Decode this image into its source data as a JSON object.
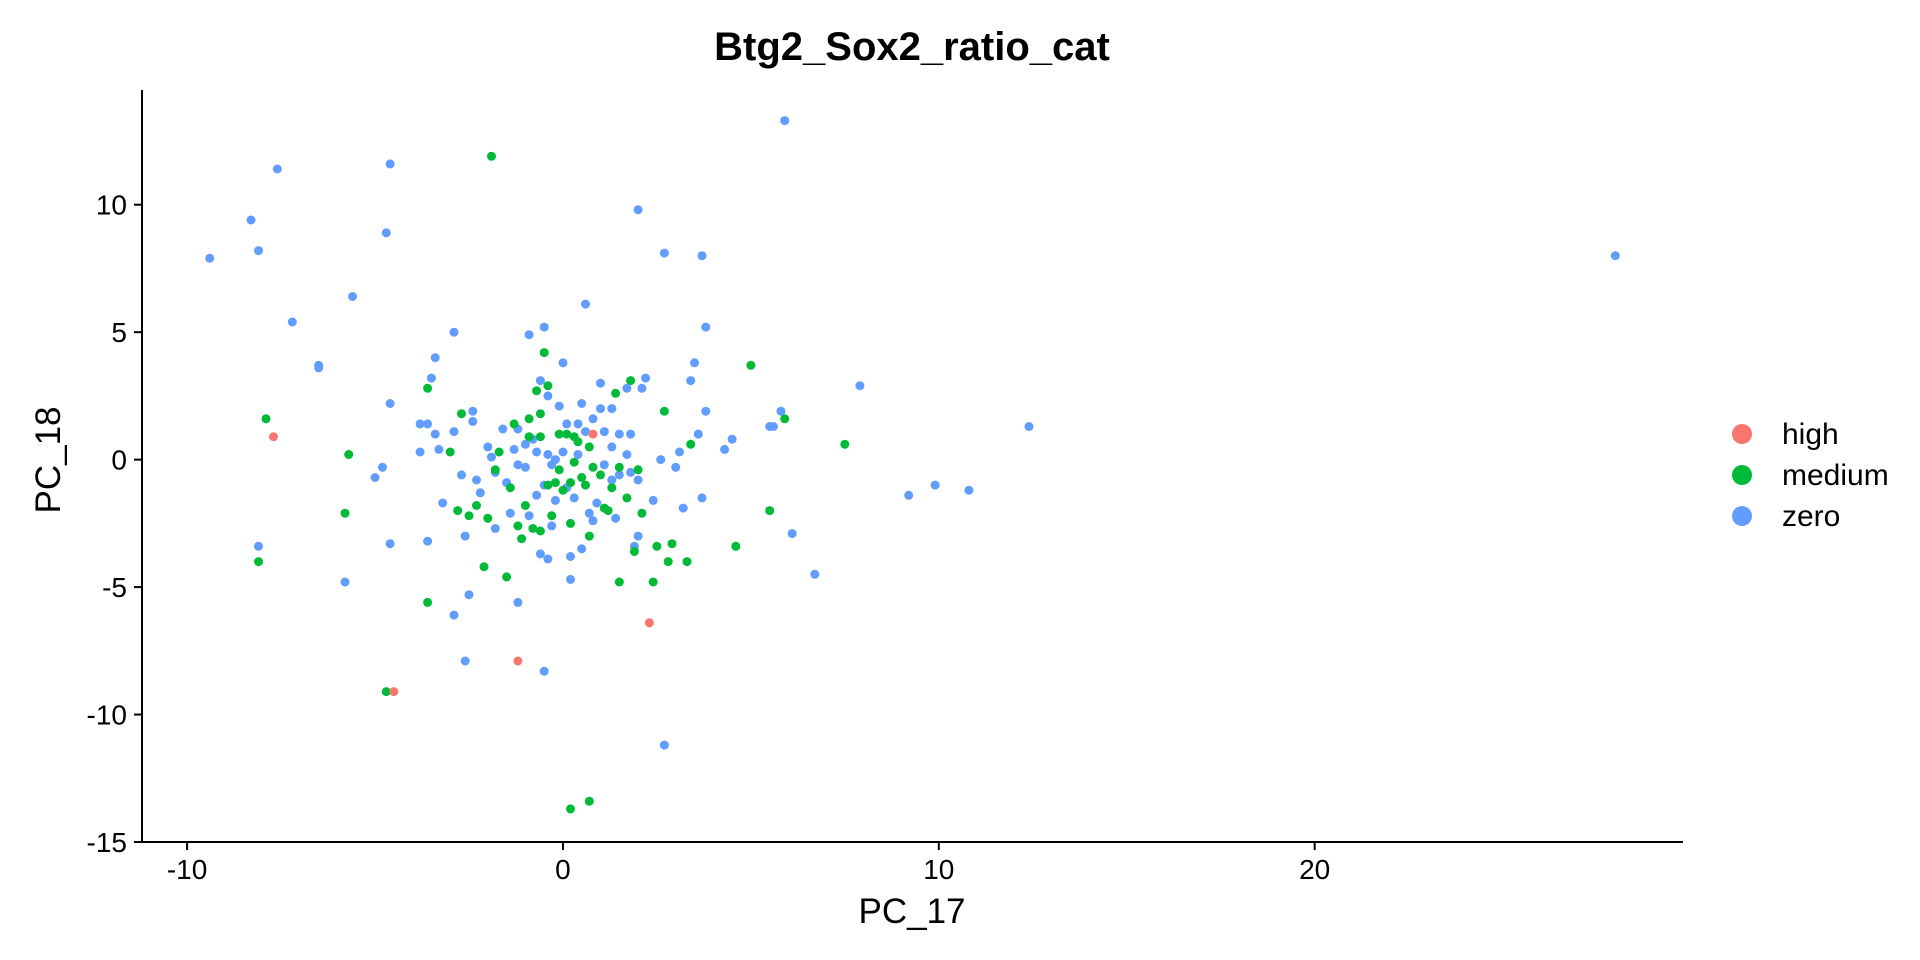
{
  "chart_data": {
    "type": "scatter",
    "title": "Btg2_Sox2_ratio_cat",
    "xlabel": "PC_17",
    "ylabel": "PC_18",
    "xlim": [
      -11.2,
      29.8
    ],
    "ylim": [
      -15,
      14.5
    ],
    "x_ticks": [
      -10,
      0,
      10,
      20
    ],
    "y_ticks": [
      -15,
      -10,
      -5,
      0,
      5,
      10
    ],
    "grid": false,
    "legend_position": "right",
    "series": [
      {
        "name": "high",
        "color": "#F8766D",
        "points": [
          [
            -7.7,
            0.9
          ],
          [
            0.8,
            1.0
          ],
          [
            2.3,
            -6.4
          ],
          [
            -1.2,
            -7.9
          ],
          [
            -4.5,
            -9.1
          ]
        ]
      },
      {
        "name": "medium",
        "color": "#00BA38",
        "points": [
          [
            -1.9,
            11.9
          ],
          [
            -8.1,
            -4.0
          ],
          [
            -7.9,
            1.6
          ],
          [
            -5.7,
            0.2
          ],
          [
            -5.8,
            -2.1
          ],
          [
            -4.7,
            -9.1
          ],
          [
            -3.6,
            2.8
          ],
          [
            -3.6,
            -5.6
          ],
          [
            -3.0,
            0.3
          ],
          [
            -2.8,
            -2.0
          ],
          [
            -2.7,
            1.8
          ],
          [
            -2.5,
            -2.2
          ],
          [
            -2.3,
            -1.8
          ],
          [
            -2.1,
            -4.2
          ],
          [
            -2.0,
            -2.3
          ],
          [
            -1.8,
            -0.4
          ],
          [
            -1.7,
            0.3
          ],
          [
            -1.5,
            -4.6
          ],
          [
            -1.4,
            -1.1
          ],
          [
            -1.3,
            1.4
          ],
          [
            -1.2,
            -2.6
          ],
          [
            -1.1,
            -3.1
          ],
          [
            -1.0,
            -1.8
          ],
          [
            -0.9,
            0.9
          ],
          [
            -0.9,
            1.6
          ],
          [
            -0.8,
            -2.7
          ],
          [
            -0.7,
            2.7
          ],
          [
            -0.6,
            1.8
          ],
          [
            -0.6,
            -2.8
          ],
          [
            -0.6,
            0.9
          ],
          [
            -0.5,
            4.2
          ],
          [
            -0.4,
            2.9
          ],
          [
            -0.4,
            -1.0
          ],
          [
            -0.3,
            -2.2
          ],
          [
            -0.2,
            -0.9
          ],
          [
            -0.1,
            1.0
          ],
          [
            -0.1,
            -0.4
          ],
          [
            0.0,
            -1.2
          ],
          [
            0.1,
            1.0
          ],
          [
            0.2,
            -2.5
          ],
          [
            0.2,
            -0.9
          ],
          [
            0.3,
            0.9
          ],
          [
            0.3,
            -0.1
          ],
          [
            0.4,
            0.7
          ],
          [
            0.5,
            -0.7
          ],
          [
            0.6,
            -1.0
          ],
          [
            0.7,
            0.5
          ],
          [
            0.7,
            -3.0
          ],
          [
            0.8,
            -0.3
          ],
          [
            1.0,
            -0.6
          ],
          [
            1.1,
            -1.9
          ],
          [
            1.2,
            -2.0
          ],
          [
            1.3,
            -1.1
          ],
          [
            1.4,
            2.6
          ],
          [
            1.5,
            -0.3
          ],
          [
            1.5,
            -4.8
          ],
          [
            1.7,
            -1.5
          ],
          [
            1.8,
            3.1
          ],
          [
            1.9,
            -3.6
          ],
          [
            2.0,
            -0.4
          ],
          [
            2.1,
            -2.1
          ],
          [
            2.4,
            -4.8
          ],
          [
            2.5,
            -3.4
          ],
          [
            2.7,
            1.9
          ],
          [
            2.8,
            -4.0
          ],
          [
            2.9,
            -3.3
          ],
          [
            3.3,
            -4.0
          ],
          [
            3.4,
            0.6
          ],
          [
            4.6,
            -3.4
          ],
          [
            5.0,
            3.7
          ],
          [
            5.5,
            -2.0
          ],
          [
            5.9,
            1.6
          ],
          [
            7.5,
            0.6
          ],
          [
            0.2,
            -13.7
          ],
          [
            0.7,
            -13.4
          ]
        ]
      },
      {
        "name": "zero",
        "color": "#619CFF",
        "points": [
          [
            -9.4,
            7.9
          ],
          [
            -7.6,
            11.4
          ],
          [
            -8.3,
            9.4
          ],
          [
            -8.1,
            8.2
          ],
          [
            -7.2,
            5.4
          ],
          [
            -6.5,
            3.7
          ],
          [
            -6.5,
            3.6
          ],
          [
            -5.6,
            6.4
          ],
          [
            -4.6,
            11.6
          ],
          [
            -4.7,
            8.9
          ],
          [
            -4.6,
            2.2
          ],
          [
            -8.1,
            -3.4
          ],
          [
            -5.0,
            -0.7
          ],
          [
            -4.8,
            -0.3
          ],
          [
            -5.8,
            -4.8
          ],
          [
            -4.6,
            -3.3
          ],
          [
            -3.6,
            -3.2
          ],
          [
            -3.4,
            4.0
          ],
          [
            -3.5,
            3.2
          ],
          [
            -3.4,
            1.0
          ],
          [
            -3.3,
            0.4
          ],
          [
            -3.2,
            -1.7
          ],
          [
            -3.8,
            0.3
          ],
          [
            -3.6,
            1.4
          ],
          [
            -3.8,
            1.4
          ],
          [
            -2.9,
            5.0
          ],
          [
            -2.9,
            1.1
          ],
          [
            -2.7,
            -0.6
          ],
          [
            -2.6,
            -3.0
          ],
          [
            -2.9,
            -6.1
          ],
          [
            -2.6,
            -7.9
          ],
          [
            -2.5,
            -5.3
          ],
          [
            -2.4,
            1.9
          ],
          [
            -2.4,
            1.5
          ],
          [
            -2.3,
            -0.8
          ],
          [
            -2.2,
            -1.3
          ],
          [
            -2.0,
            0.5
          ],
          [
            -1.9,
            0.1
          ],
          [
            -1.8,
            -0.5
          ],
          [
            -1.8,
            -2.7
          ],
          [
            -1.6,
            1.2
          ],
          [
            -1.5,
            -0.9
          ],
          [
            -1.4,
            -2.1
          ],
          [
            -1.3,
            0.4
          ],
          [
            -1.2,
            1.2
          ],
          [
            -1.2,
            -0.2
          ],
          [
            -1.2,
            -5.6
          ],
          [
            -1.0,
            0.6
          ],
          [
            -1.0,
            -0.3
          ],
          [
            -0.9,
            -2.2
          ],
          [
            -0.9,
            4.9
          ],
          [
            -0.8,
            0.8
          ],
          [
            -0.7,
            -1.4
          ],
          [
            -0.7,
            0.3
          ],
          [
            -0.6,
            -3.7
          ],
          [
            -0.6,
            3.1
          ],
          [
            -0.5,
            5.2
          ],
          [
            -0.5,
            -1.0
          ],
          [
            -0.4,
            0.2
          ],
          [
            -0.4,
            2.5
          ],
          [
            -0.4,
            -3.9
          ],
          [
            -0.5,
            -8.3
          ],
          [
            -0.3,
            -0.2
          ],
          [
            -0.2,
            0.0
          ],
          [
            -0.2,
            -1.6
          ],
          [
            -0.1,
            2.1
          ],
          [
            0.0,
            3.8
          ],
          [
            0.0,
            0.3
          ],
          [
            0.1,
            -1.1
          ],
          [
            0.1,
            1.4
          ],
          [
            0.2,
            -3.8
          ],
          [
            0.2,
            -4.7
          ],
          [
            0.3,
            -1.5
          ],
          [
            0.4,
            1.4
          ],
          [
            0.4,
            0.2
          ],
          [
            0.5,
            2.2
          ],
          [
            0.6,
            1.1
          ],
          [
            0.6,
            6.1
          ],
          [
            0.7,
            -2.1
          ],
          [
            0.8,
            -2.4
          ],
          [
            0.8,
            1.6
          ],
          [
            0.9,
            -1.7
          ],
          [
            1.0,
            3.0
          ],
          [
            1.0,
            2.0
          ],
          [
            1.1,
            1.1
          ],
          [
            1.1,
            -0.2
          ],
          [
            1.3,
            -0.8
          ],
          [
            1.3,
            0.5
          ],
          [
            1.4,
            -2.3
          ],
          [
            1.5,
            1.0
          ],
          [
            1.5,
            -0.6
          ],
          [
            1.7,
            2.8
          ],
          [
            1.7,
            0.2
          ],
          [
            1.8,
            -0.5
          ],
          [
            1.8,
            1.0
          ],
          [
            1.9,
            -3.4
          ],
          [
            2.0,
            -3.0
          ],
          [
            2.0,
            -0.8
          ],
          [
            2.1,
            2.8
          ],
          [
            2.2,
            3.2
          ],
          [
            2.0,
            9.8
          ],
          [
            2.4,
            -1.6
          ],
          [
            2.6,
            0.0
          ],
          [
            2.7,
            8.1
          ],
          [
            2.7,
            -11.2
          ],
          [
            3.0,
            -0.3
          ],
          [
            3.1,
            0.3
          ],
          [
            3.2,
            -1.9
          ],
          [
            3.4,
            3.1
          ],
          [
            3.5,
            3.8
          ],
          [
            3.6,
            1.0
          ],
          [
            3.7,
            8.0
          ],
          [
            3.8,
            1.9
          ],
          [
            3.7,
            -1.5
          ],
          [
            3.8,
            5.2
          ],
          [
            4.3,
            0.4
          ],
          [
            4.5,
            0.8
          ],
          [
            5.5,
            1.3
          ],
          [
            5.6,
            1.3
          ],
          [
            5.8,
            1.9
          ],
          [
            6.1,
            -2.9
          ],
          [
            6.7,
            -4.5
          ],
          [
            7.9,
            2.9
          ],
          [
            9.2,
            -1.4
          ],
          [
            9.9,
            -1.0
          ],
          [
            10.8,
            -1.2
          ],
          [
            12.4,
            1.3
          ],
          [
            28.0,
            8.0
          ],
          [
            5.9,
            13.3
          ],
          [
            1.3,
            2.0
          ],
          [
            -0.3,
            -2.6
          ],
          [
            0.5,
            -3.5
          ]
        ]
      }
    ]
  }
}
